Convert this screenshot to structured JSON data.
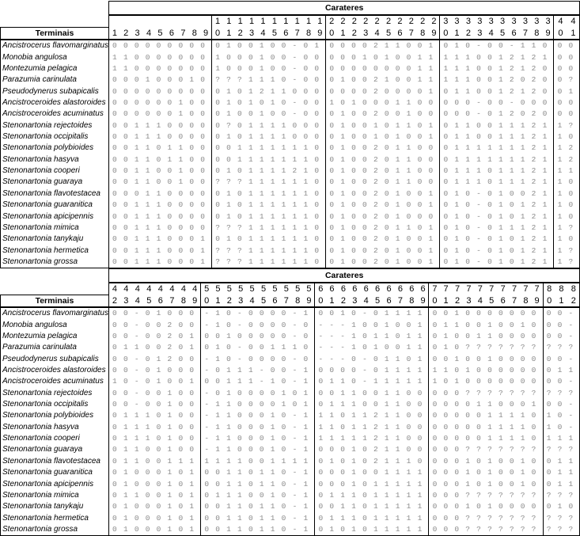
{
  "tables": [
    {
      "header": "Carateres",
      "terminals_label": "Terminais",
      "characters": [
        1,
        2,
        3,
        4,
        5,
        6,
        7,
        8,
        9,
        10,
        11,
        12,
        13,
        14,
        15,
        16,
        17,
        18,
        19,
        20,
        21,
        22,
        23,
        24,
        25,
        26,
        27,
        28,
        29,
        30,
        31,
        32,
        33,
        34,
        35,
        36,
        37,
        38,
        39,
        40,
        41
      ],
      "rows": [
        {
          "taxon": "Ancistrocerus flavomarginatus",
          "states": [
            "000000000",
            "0100100-01",
            "0000211001",
            "010-00-110",
            "00"
          ]
        },
        {
          "taxon": "Monobia angulosa",
          "states": [
            "110000000",
            "1000100-00",
            "0001010011",
            "1110012121",
            "00"
          ]
        },
        {
          "taxon": "Montezumia pelagica",
          "states": [
            "110000000",
            "1000100-00",
            "0000000011",
            "1110012120",
            "00"
          ]
        },
        {
          "taxon": "Parazumia carinulata",
          "states": [
            "000100010",
            "???1110-00",
            "0100210011",
            "1110012020",
            "0?"
          ]
        },
        {
          "taxon": "Pseudodynerus subapicalis",
          "states": [
            "000000000",
            "0101211000",
            "0000200001",
            "0110012120",
            "01"
          ]
        },
        {
          "taxon": "Ancistroceroides alastoroides",
          "states": [
            "000000100",
            "0101010-00",
            "1010001100",
            "000-00-000",
            "00"
          ]
        },
        {
          "taxon": "Ancistroceroides acuminatus",
          "states": [
            "000000100",
            "0100100-00",
            "0100200100",
            "000-012020",
            "00"
          ]
        },
        {
          "taxon": "Stenonartonia rejectoides",
          "states": [
            "001110000",
            "0?01111000",
            "0100101101",
            "0110011121",
            "1?"
          ]
        },
        {
          "taxon": "Stenonartonia occipitalis",
          "states": [
            "001110000",
            "0101111000",
            "0100101001",
            "0110011121",
            "10"
          ]
        },
        {
          "taxon": "Stenonartonia polybioides",
          "states": [
            "001101100",
            "0011111110",
            "0100201100",
            "0111111121",
            "12"
          ]
        },
        {
          "taxon": "Stenonartonia hasyva",
          "states": [
            "001101100",
            "0011111110",
            "0100201100",
            "0111111121",
            "12"
          ]
        },
        {
          "taxon": "Stenonartonia cooperi",
          "states": [
            "001100100",
            "0101111210",
            "0100201100",
            "0111011121",
            "11"
          ]
        },
        {
          "taxon": "Stenonartonia guaraya",
          "states": [
            "001100100",
            "???1111110",
            "0100201100",
            "0111011121",
            "10"
          ]
        },
        {
          "taxon": "Stenonartonia flavotestacea",
          "states": [
            "000110000",
            "0101111110",
            "0100201001",
            "010-010021",
            "10"
          ]
        },
        {
          "taxon": "Stenonartonia guaranitica",
          "states": [
            "001110000",
            "0101111110",
            "0100201001",
            "010-010121",
            "10"
          ]
        },
        {
          "taxon": "Stenonartonia apicipennis",
          "states": [
            "001110000",
            "0101111110",
            "0100201000",
            "010-010121",
            "10"
          ]
        },
        {
          "taxon": "Stenonartonia mimica",
          "states": [
            "001110000",
            "???1111110",
            "0100201101",
            "010-011121",
            "1?"
          ]
        },
        {
          "taxon": "Stenonartonia tanykaju",
          "states": [
            "001110001",
            "0101111110",
            "0100201001",
            "010-010121",
            "10"
          ]
        },
        {
          "taxon": "Stenonartonia hermetica",
          "states": [
            "001110001",
            "???1111110",
            "0100201001",
            "010-010121",
            "1?"
          ]
        },
        {
          "taxon": "Stenonartonia grossa",
          "states": [
            "001110001",
            "???1111110",
            "0100201001",
            "010-010121",
            "1?"
          ]
        }
      ]
    },
    {
      "header": "Carateres",
      "terminals_label": "Terminais",
      "characters": [
        42,
        43,
        44,
        45,
        46,
        47,
        48,
        49,
        50,
        51,
        52,
        53,
        54,
        55,
        56,
        57,
        58,
        59,
        60,
        61,
        62,
        63,
        64,
        65,
        66,
        67,
        68,
        69,
        70,
        71,
        72,
        73,
        74,
        75,
        76,
        77,
        78,
        79,
        80,
        81,
        82
      ],
      "rows": [
        {
          "taxon": "Ancistrocerus flavomarginatus",
          "states": [
            "00-01000",
            "-10-0000-1",
            "0010-01111",
            "0010000000",
            "00-"
          ]
        },
        {
          "taxon": "Monobia angulosa",
          "states": [
            "00-00200",
            "-10-0000-0",
            "---1001001",
            "0110010010",
            "00-"
          ]
        },
        {
          "taxon": "Montezumia pelagica",
          "states": [
            "00-00201",
            "00100000-0",
            "---1011011",
            "0100110000",
            "00-"
          ]
        },
        {
          "taxon": "Parazumia carinulata",
          "states": [
            "01100201",
            "010-001110",
            "---1010011",
            "010???????",
            "???"
          ]
        },
        {
          "taxon": "Pseudodynerus subapicalis",
          "states": [
            "00-01200",
            "-10-0000-0",
            "---0-01101",
            "0010010000",
            "00-"
          ]
        },
        {
          "taxon": "Ancistroceroides alastoroides",
          "states": [
            "00-01000",
            "-0111-00-1",
            "0000-01111",
            "1101000000",
            "011"
          ]
        },
        {
          "taxon": "Ancistroceroides acuminatus",
          "states": [
            "10-01001",
            "00111-10-1",
            "0110-11111",
            "1010000000",
            "00-"
          ]
        },
        {
          "taxon": "Stenonartonia rejectoides",
          "states": [
            "00-00100",
            "-010000101",
            "0011001100",
            "000???????",
            "???"
          ]
        },
        {
          "taxon": "Stenonartonia occipitalis",
          "states": [
            "00-00100",
            "-110000101",
            "0111001100",
            "0000110001",
            "00-"
          ]
        },
        {
          "taxon": "Stenonartonia polybioides",
          "states": [
            "01110100",
            "-1100010-1",
            "1101121100",
            "0000011110",
            "10-"
          ]
        },
        {
          "taxon": "Stenonartonia hasyva",
          "states": [
            "01110100",
            "-1100010-1",
            "1101121100",
            "0000011110",
            "10-"
          ]
        },
        {
          "taxon": "Stenonartonia cooperi",
          "states": [
            "01110100",
            "-1100010-1",
            "1111121100",
            "0000011110",
            "111"
          ]
        },
        {
          "taxon": "Stenonartonia guaraya",
          "states": [
            "01100100",
            "-1100010-1",
            "0001021100",
            "000???????",
            "???"
          ]
        },
        {
          "taxon": "Stenonartonia flavotestacea",
          "states": [
            "01100111",
            "1111001111",
            "0101021110",
            "0001010010",
            "011"
          ]
        },
        {
          "taxon": "Stenonartonia guaranitica",
          "states": [
            "01000101",
            "00110110-1",
            "0001001111",
            "0001010010",
            "011"
          ]
        },
        {
          "taxon": "Stenonartonia apicipennis",
          "states": [
            "01000101",
            "00110110-1",
            "0001011111",
            "0001010010",
            "011"
          ]
        },
        {
          "taxon": "Stenonartonia mimica",
          "states": [
            "01100101",
            "01110010-1",
            "0111011111",
            "000???????",
            "???"
          ]
        },
        {
          "taxon": "Stenonartonia tanykaju",
          "states": [
            "01000101",
            "00110110-1",
            "0011011111",
            "0001010000",
            "010"
          ]
        },
        {
          "taxon": "Stenonartonia hermetica",
          "states": [
            "01000101",
            "00110110-1",
            "0111011111",
            "000???????",
            "???"
          ]
        },
        {
          "taxon": "Stenonartonia grossa",
          "states": [
            "01000101",
            "00110110-1",
            "0101011111",
            "000???????",
            "???"
          ]
        }
      ]
    }
  ]
}
